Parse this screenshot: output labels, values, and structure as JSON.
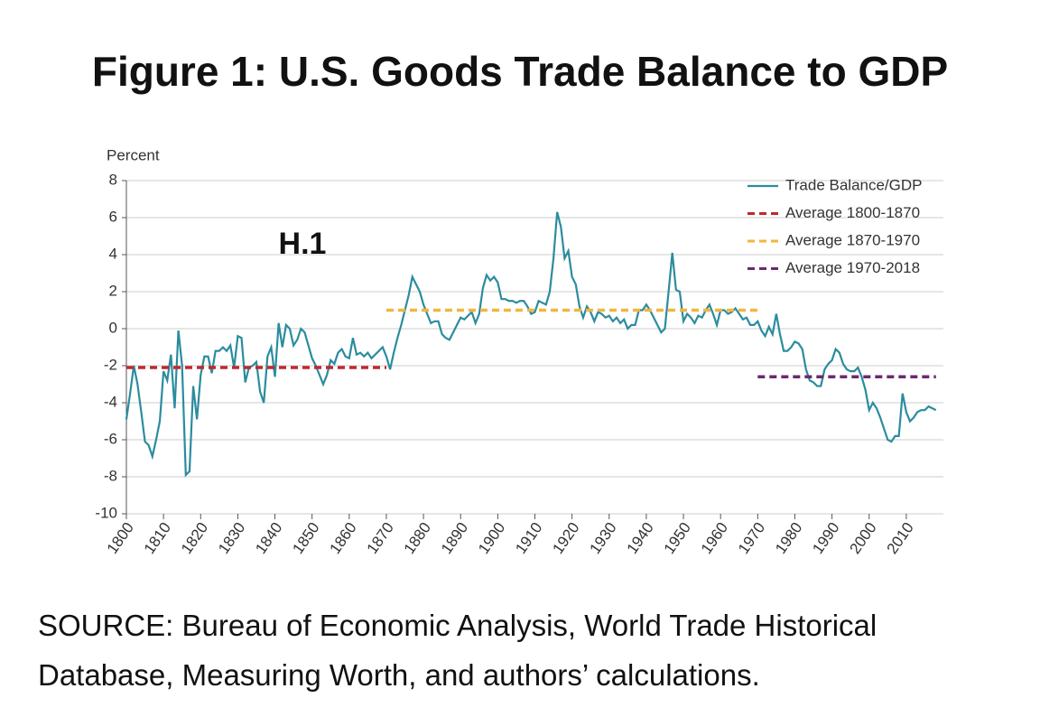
{
  "chart_data": {
    "type": "line",
    "title": "Figure 1: U.S. Goods Trade Balance to GDP",
    "y_label": "Percent",
    "annotation": "H.1",
    "source": [
      "SOURCE: Bureau of Economic Analysis, World Trade Historical",
      "Database, Measuring Worth, and authors’ calculations."
    ],
    "xlim": [
      1800,
      2020
    ],
    "xticks": [
      1800,
      1810,
      1820,
      1830,
      1840,
      1850,
      1860,
      1870,
      1880,
      1890,
      1900,
      1910,
      1920,
      1930,
      1940,
      1950,
      1960,
      1970,
      1980,
      1990,
      2000,
      2010
    ],
    "ylim": [
      -10,
      8
    ],
    "yticks": [
      -10,
      -8,
      -6,
      -4,
      -2,
      0,
      2,
      4,
      6,
      8
    ],
    "grid": true,
    "legend": "upper right",
    "series": [
      {
        "name": "Trade Balance/GDP",
        "color": "#2b8c9e",
        "style": "solid",
        "x": [
          1800,
          1801,
          1802,
          1803,
          1804,
          1805,
          1806,
          1807,
          1808,
          1809,
          1810,
          1811,
          1812,
          1813,
          1814,
          1815,
          1816,
          1817,
          1818,
          1819,
          1820,
          1821,
          1822,
          1823,
          1824,
          1825,
          1826,
          1827,
          1828,
          1829,
          1830,
          1831,
          1832,
          1833,
          1834,
          1835,
          1836,
          1837,
          1838,
          1839,
          1840,
          1841,
          1842,
          1843,
          1844,
          1845,
          1846,
          1847,
          1848,
          1849,
          1850,
          1851,
          1852,
          1853,
          1854,
          1855,
          1856,
          1857,
          1858,
          1859,
          1860,
          1861,
          1862,
          1863,
          1864,
          1865,
          1866,
          1867,
          1868,
          1869,
          1870,
          1871,
          1872,
          1873,
          1874,
          1875,
          1876,
          1877,
          1878,
          1879,
          1880,
          1881,
          1882,
          1883,
          1884,
          1885,
          1886,
          1887,
          1888,
          1889,
          1890,
          1891,
          1892,
          1893,
          1894,
          1895,
          1896,
          1897,
          1898,
          1899,
          1900,
          1901,
          1902,
          1903,
          1904,
          1905,
          1906,
          1907,
          1908,
          1909,
          1910,
          1911,
          1912,
          1913,
          1914,
          1915,
          1916,
          1917,
          1918,
          1919,
          1920,
          1921,
          1922,
          1923,
          1924,
          1925,
          1926,
          1927,
          1928,
          1929,
          1930,
          1931,
          1932,
          1933,
          1934,
          1935,
          1936,
          1937,
          1938,
          1939,
          1940,
          1941,
          1942,
          1943,
          1944,
          1945,
          1946,
          1947,
          1948,
          1949,
          1950,
          1951,
          1952,
          1953,
          1954,
          1955,
          1956,
          1957,
          1958,
          1959,
          1960,
          1961,
          1962,
          1963,
          1964,
          1965,
          1966,
          1967,
          1968,
          1969,
          1970,
          1971,
          1972,
          1973,
          1974,
          1975,
          1976,
          1977,
          1978,
          1979,
          1980,
          1981,
          1982,
          1983,
          1984,
          1985,
          1986,
          1987,
          1988,
          1989,
          1990,
          1991,
          1992,
          1993,
          1994,
          1995,
          1996,
          1997,
          1998,
          1999,
          2000,
          2001,
          2002,
          2003,
          2004,
          2005,
          2006,
          2007,
          2008,
          2009,
          2010,
          2011,
          2012,
          2013,
          2014,
          2015,
          2016,
          2017,
          2018
        ],
        "values": [
          -4.9,
          -3.5,
          -2.0,
          -3.0,
          -4.5,
          -6.1,
          -6.3,
          -6.9,
          -6.0,
          -5.0,
          -2.3,
          -2.8,
          -1.4,
          -4.3,
          -0.1,
          -2.0,
          -7.9,
          -7.7,
          -3.1,
          -4.9,
          -2.5,
          -1.5,
          -1.5,
          -2.4,
          -1.2,
          -1.2,
          -1.0,
          -1.2,
          -0.9,
          -2.1,
          -0.4,
          -0.5,
          -2.9,
          -2.1,
          -2.0,
          -1.8,
          -3.4,
          -4.0,
          -1.5,
          -1.0,
          -2.6,
          0.3,
          -1.0,
          0.2,
          0.0,
          -0.9,
          -0.6,
          0.0,
          -0.2,
          -0.9,
          -1.6,
          -2.0,
          -2.5,
          -3.0,
          -2.5,
          -1.7,
          -1.9,
          -1.3,
          -1.1,
          -1.5,
          -1.6,
          -0.5,
          -1.4,
          -1.3,
          -1.5,
          -1.3,
          -1.6,
          -1.4,
          -1.2,
          -1.0,
          -1.5,
          -2.2,
          -1.3,
          -0.5,
          0.2,
          1.0,
          1.8,
          2.8,
          2.4,
          2.0,
          1.3,
          0.8,
          0.3,
          0.4,
          0.4,
          -0.3,
          -0.5,
          -0.6,
          -0.2,
          0.2,
          0.6,
          0.5,
          0.7,
          0.9,
          0.3,
          0.8,
          2.2,
          2.9,
          2.6,
          2.8,
          2.5,
          1.6,
          1.6,
          1.5,
          1.5,
          1.4,
          1.5,
          1.5,
          1.2,
          0.8,
          0.9,
          1.5,
          1.4,
          1.3,
          2.0,
          3.8,
          6.3,
          5.5,
          3.8,
          4.2,
          2.8,
          2.4,
          1.2,
          0.6,
          1.2,
          0.9,
          0.4,
          0.9,
          0.8,
          0.6,
          0.7,
          0.4,
          0.6,
          0.3,
          0.5,
          0.0,
          0.2,
          0.2,
          1.0,
          1.0,
          1.3,
          1.0,
          0.6,
          0.2,
          -0.2,
          0.0,
          2.0,
          4.1,
          2.1,
          2.0,
          0.4,
          0.8,
          0.6,
          0.3,
          0.7,
          0.6,
          1.0,
          1.3,
          0.8,
          0.2,
          1.0,
          1.0,
          0.8,
          0.9,
          1.1,
          0.8,
          0.5,
          0.6,
          0.2,
          0.2,
          0.4,
          -0.1,
          -0.4,
          0.1,
          -0.3,
          0.8,
          -0.3,
          -1.2,
          -1.2,
          -1.0,
          -0.7,
          -0.8,
          -1.1,
          -2.2,
          -2.8,
          -2.9,
          -3.1,
          -3.1,
          -2.2,
          -1.9,
          -1.7,
          -1.1,
          -1.3,
          -1.9,
          -2.2,
          -2.3,
          -2.3,
          -2.1,
          -2.6,
          -3.3,
          -4.4,
          -4.0,
          -4.3,
          -4.8,
          -5.4,
          -6.0,
          -6.1,
          -5.8,
          -5.8,
          -3.5,
          -4.5,
          -5.0,
          -4.8,
          -4.5,
          -4.4,
          -4.4,
          -4.2,
          -4.3,
          -4.4
        ]
      },
      {
        "name": "Average 1800-1870",
        "color": "#c0282d",
        "style": "dashed",
        "x": [
          1800,
          1870
        ],
        "values": [
          -2.1,
          -2.1
        ]
      },
      {
        "name": "Average 1870-1970",
        "color": "#f2b540",
        "style": "dashed",
        "x": [
          1870,
          1970
        ],
        "values": [
          1.0,
          1.0
        ]
      },
      {
        "name": "Average 1970-2018",
        "color": "#6a2a6e",
        "style": "dashed",
        "x": [
          1970,
          2018
        ],
        "values": [
          -2.6,
          -2.6
        ]
      }
    ]
  }
}
